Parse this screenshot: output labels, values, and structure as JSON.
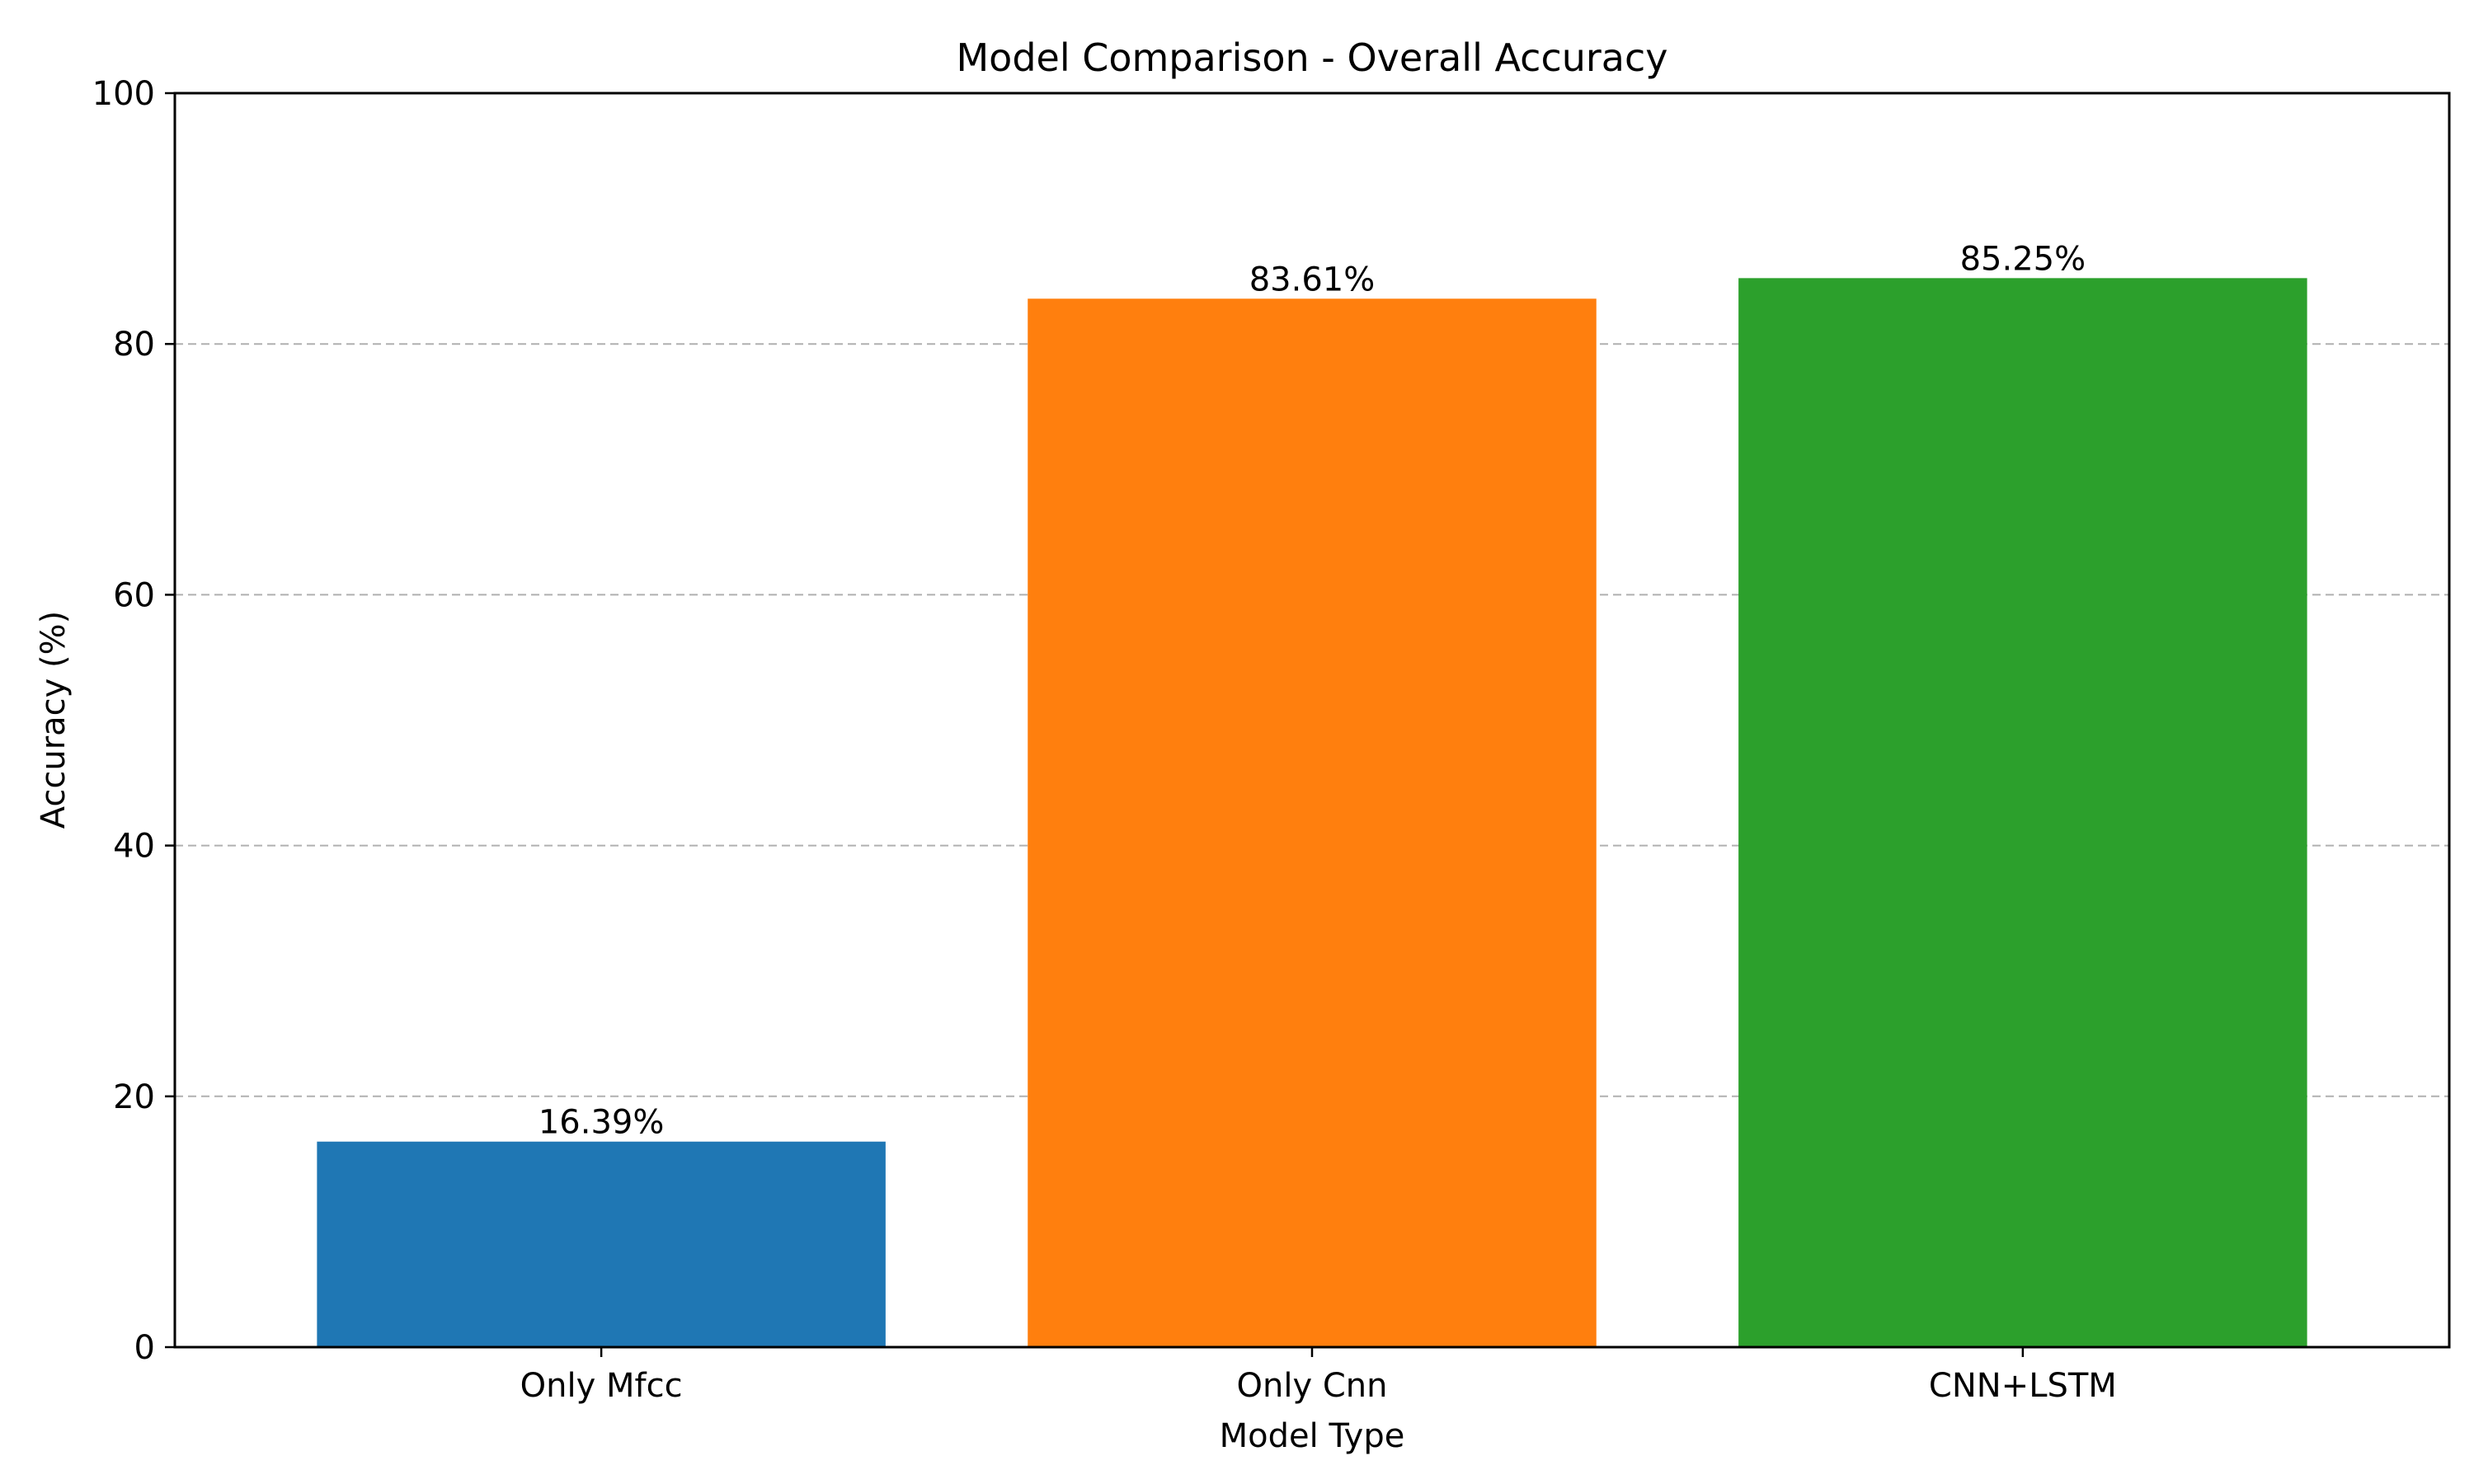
{
  "chart_data": {
    "type": "bar",
    "title": "Model Comparison - Overall Accuracy",
    "xlabel": "Model Type",
    "ylabel": "Accuracy (%)",
    "categories": [
      "Only Mfcc",
      "Only Cnn",
      "CNN+LSTM"
    ],
    "values": [
      16.39,
      83.61,
      85.25
    ],
    "value_labels": [
      "16.39%",
      "83.61%",
      "85.25%"
    ],
    "colors": [
      "#1f77b4",
      "#ff7f0e",
      "#2ca02c"
    ],
    "ylim": [
      0,
      100
    ],
    "yticks": [
      0,
      20,
      40,
      60,
      80,
      100
    ],
    "ytick_labels": [
      "0",
      "20",
      "40",
      "60",
      "80",
      "100"
    ],
    "grid": {
      "axis": "y",
      "style": "dashed",
      "color": "#b0b0b0",
      "enabled": true
    },
    "legend": "none"
  }
}
